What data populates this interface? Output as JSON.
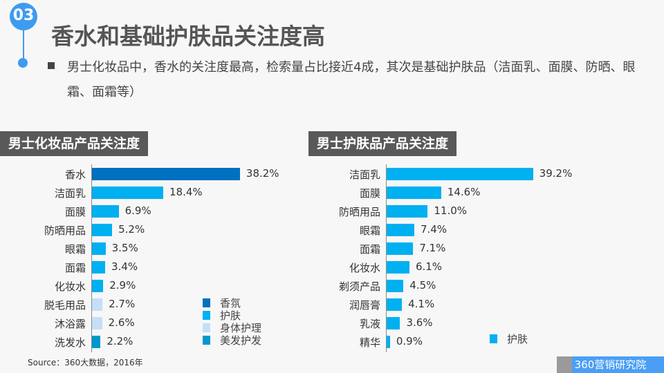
{
  "badge": "03",
  "title": "香水和基础护肤品关注度高",
  "description": "男士化妆品中，香水的关注度最高，检索量占比接近4成，其次是基础护肤品（洁面乳、面膜、防晒、眼霜、面霜等）",
  "source": "Source：360大数据，2016年",
  "logo": "360营销研究院",
  "chart_data": [
    {
      "type": "bar",
      "orientation": "horizontal",
      "title": "男士化妆品产品关注度",
      "categories": [
        "香水",
        "洁面乳",
        "面膜",
        "防晒用品",
        "眼霜",
        "面霜",
        "化妆水",
        "脱毛用品",
        "沐浴露",
        "洗发水"
      ],
      "values": [
        38.2,
        18.4,
        6.9,
        5.2,
        3.5,
        3.4,
        2.9,
        2.7,
        2.6,
        2.2
      ],
      "labels": [
        "38.2%",
        "18.4%",
        "6.9%",
        "5.2%",
        "3.5%",
        "3.4%",
        "2.9%",
        "2.7%",
        "2.6%",
        "2.2%"
      ],
      "groups": [
        "香氛",
        "护肤",
        "护肤",
        "护肤",
        "护肤",
        "护肤",
        "护肤",
        "身体护理",
        "身体护理",
        "美发护发"
      ],
      "legend": [
        {
          "name": "香氛",
          "color": "#0070c0"
        },
        {
          "name": "护肤",
          "color": "#00b0f0"
        },
        {
          "name": "身体护理",
          "color": "#c5dff8"
        },
        {
          "name": "美发护发",
          "color": "#0099cc"
        }
      ],
      "legend_position": "bottom-right",
      "grid": false
    },
    {
      "type": "bar",
      "orientation": "horizontal",
      "title": "男士护肤品产品关注度",
      "categories": [
        "洁面乳",
        "面膜",
        "防晒用品",
        "眼霜",
        "面霜",
        "化妆水",
        "剃须产品",
        "润唇膏",
        "乳液",
        "精华"
      ],
      "values": [
        39.2,
        14.6,
        11.0,
        7.4,
        7.1,
        6.1,
        4.5,
        4.1,
        3.6,
        0.9
      ],
      "labels": [
        "39.2%",
        "14.6%",
        "11.0%",
        "7.4%",
        "7.1%",
        "6.1%",
        "4.5%",
        "4.1%",
        "3.6%",
        "0.9%"
      ],
      "groups": [
        "护肤",
        "护肤",
        "护肤",
        "护肤",
        "护肤",
        "护肤",
        "护肤",
        "护肤",
        "护肤",
        "护肤"
      ],
      "legend": [
        {
          "name": "护肤",
          "color": "#00b0f0"
        }
      ],
      "legend_position": "bottom-right",
      "grid": false
    }
  ]
}
